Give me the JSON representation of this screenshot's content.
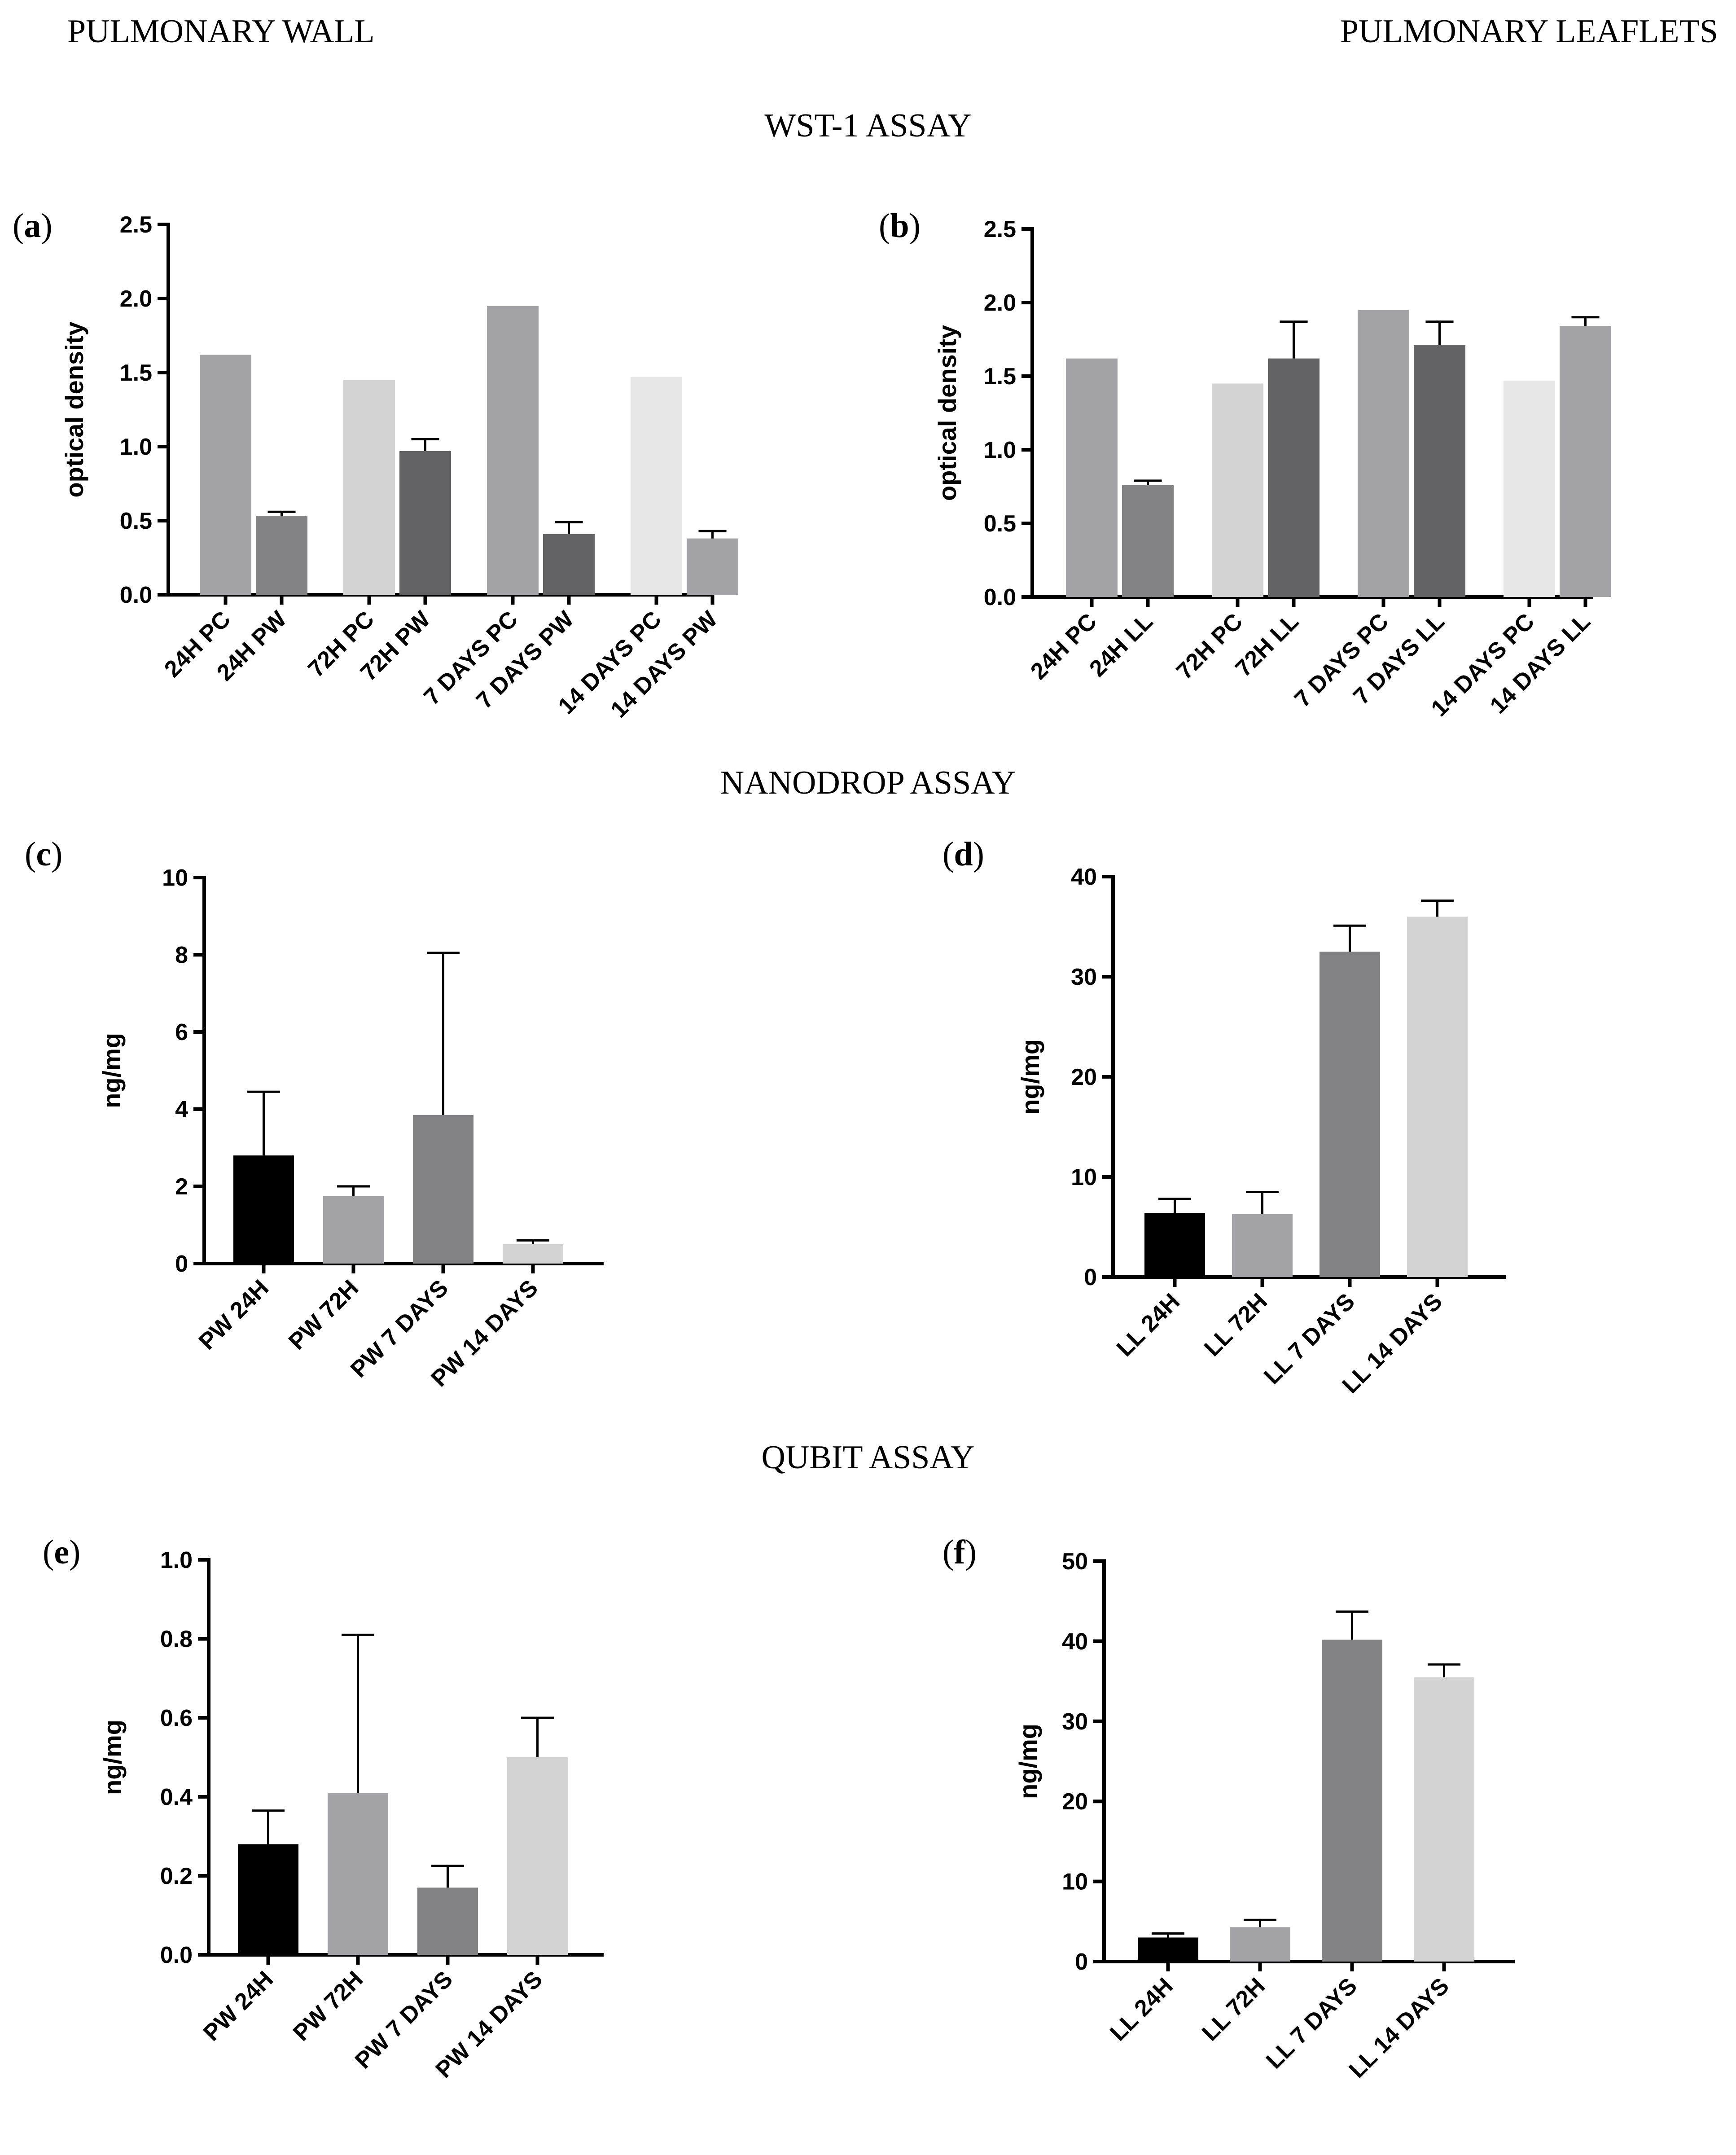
{
  "headers": {
    "left": "PULMONARY WALL",
    "right": "PULMONARY LEAFLETS",
    "wst1": "WST-1 ASSAY",
    "nanodrop": "NANODROP ASSAY",
    "qubit": "QUBIT ASSAY"
  },
  "chart_data": [
    {
      "id": "a",
      "label": "a",
      "type": "bar",
      "ylabel": "optical density",
      "ylim": [
        0,
        2.5
      ],
      "yticks": [
        0.0,
        0.5,
        1.0,
        1.5,
        2.0,
        2.5
      ],
      "tick_decimals": 1,
      "categories": [
        "24H PC",
        "24H PW",
        "72H PC",
        "72H PW",
        "7 DAYS PC",
        "7 DAYS PW",
        "14 DAYS PC",
        "14 DAYS PW"
      ],
      "values": [
        1.62,
        0.53,
        1.45,
        0.97,
        1.95,
        0.41,
        1.47,
        0.38
      ],
      "errors": [
        0,
        0.03,
        0,
        0.08,
        0,
        0.08,
        0,
        0.05
      ],
      "colors": [
        "#a3a3a7",
        "#828285",
        "#d3d3d4",
        "#636365",
        "#a3a3a7",
        "#636365",
        "#e6e6e7",
        "#a3a3a7"
      ],
      "grouped": true
    },
    {
      "id": "b",
      "label": "b",
      "type": "bar",
      "ylabel": "optical density",
      "ylim": [
        0,
        2.5
      ],
      "yticks": [
        0.0,
        0.5,
        1.0,
        1.5,
        2.0,
        2.5
      ],
      "tick_decimals": 1,
      "categories": [
        "24H PC",
        "24H LL",
        "72H PC",
        "72H LL",
        "7 DAYS PC",
        "7 DAYS LL",
        "14 DAYS PC",
        "14 DAYS LL"
      ],
      "values": [
        1.62,
        0.76,
        1.45,
        1.62,
        1.95,
        1.71,
        1.47,
        1.84
      ],
      "errors": [
        0,
        0.03,
        0,
        0.25,
        0,
        0.16,
        0,
        0.06
      ],
      "colors": [
        "#a3a3a7",
        "#828285",
        "#d3d3d4",
        "#636365",
        "#a3a3a7",
        "#636365",
        "#e6e6e7",
        "#a3a3a7"
      ],
      "grouped": true
    },
    {
      "id": "c",
      "label": "c",
      "type": "bar",
      "ylabel": "ng/mg",
      "ylim": [
        0,
        10
      ],
      "yticks": [
        0,
        2,
        4,
        6,
        8,
        10
      ],
      "tick_decimals": 0,
      "categories": [
        "PW 24H",
        "PW 72H",
        "PW 7 DAYS",
        "PW 14 DAYS"
      ],
      "values": [
        2.8,
        1.75,
        3.85,
        0.5
      ],
      "errors": [
        1.65,
        0.25,
        4.2,
        0.1
      ],
      "colors": [
        "#000000",
        "#a3a3a7",
        "#828285",
        "#d3d3d4"
      ],
      "grouped": false
    },
    {
      "id": "d",
      "label": "d",
      "type": "bar",
      "ylabel": "ng/mg",
      "ylim": [
        0,
        40
      ],
      "yticks": [
        0,
        10,
        20,
        30,
        40
      ],
      "tick_decimals": 0,
      "categories": [
        "LL 24H",
        "LL 72H",
        "LL 7 DAYS",
        "LL 14 DAYS"
      ],
      "values": [
        6.4,
        6.3,
        32.5,
        36.0
      ],
      "errors": [
        1.4,
        2.2,
        2.6,
        1.6
      ],
      "colors": [
        "#000000",
        "#a3a3a7",
        "#828285",
        "#d3d3d4"
      ],
      "grouped": false
    },
    {
      "id": "e",
      "label": "e",
      "type": "bar",
      "ylabel": "ng/mg",
      "ylim": [
        0,
        1.0
      ],
      "yticks": [
        0.0,
        0.2,
        0.4,
        0.6,
        0.8,
        1.0
      ],
      "tick_decimals": 1,
      "categories": [
        "PW 24H",
        "PW 72H",
        "PW 7 DAYS",
        "PW 14 DAYS"
      ],
      "values": [
        0.28,
        0.41,
        0.17,
        0.5
      ],
      "errors": [
        0.085,
        0.4,
        0.055,
        0.1
      ],
      "colors": [
        "#000000",
        "#a3a3a7",
        "#828285",
        "#d3d3d4"
      ],
      "grouped": false
    },
    {
      "id": "f",
      "label": "f",
      "type": "bar",
      "ylabel": "ng/mg",
      "ylim": [
        0,
        50
      ],
      "yticks": [
        0,
        10,
        20,
        30,
        40,
        50
      ],
      "tick_decimals": 0,
      "categories": [
        "LL 24H",
        "LL 72H",
        "LL 7 DAYS",
        "LL 14 DAYS"
      ],
      "values": [
        3.0,
        4.3,
        40.2,
        35.5
      ],
      "errors": [
        0.5,
        0.9,
        3.5,
        1.6
      ],
      "colors": [
        "#000000",
        "#a3a3a7",
        "#828285",
        "#d3d3d4"
      ],
      "grouped": false
    }
  ]
}
